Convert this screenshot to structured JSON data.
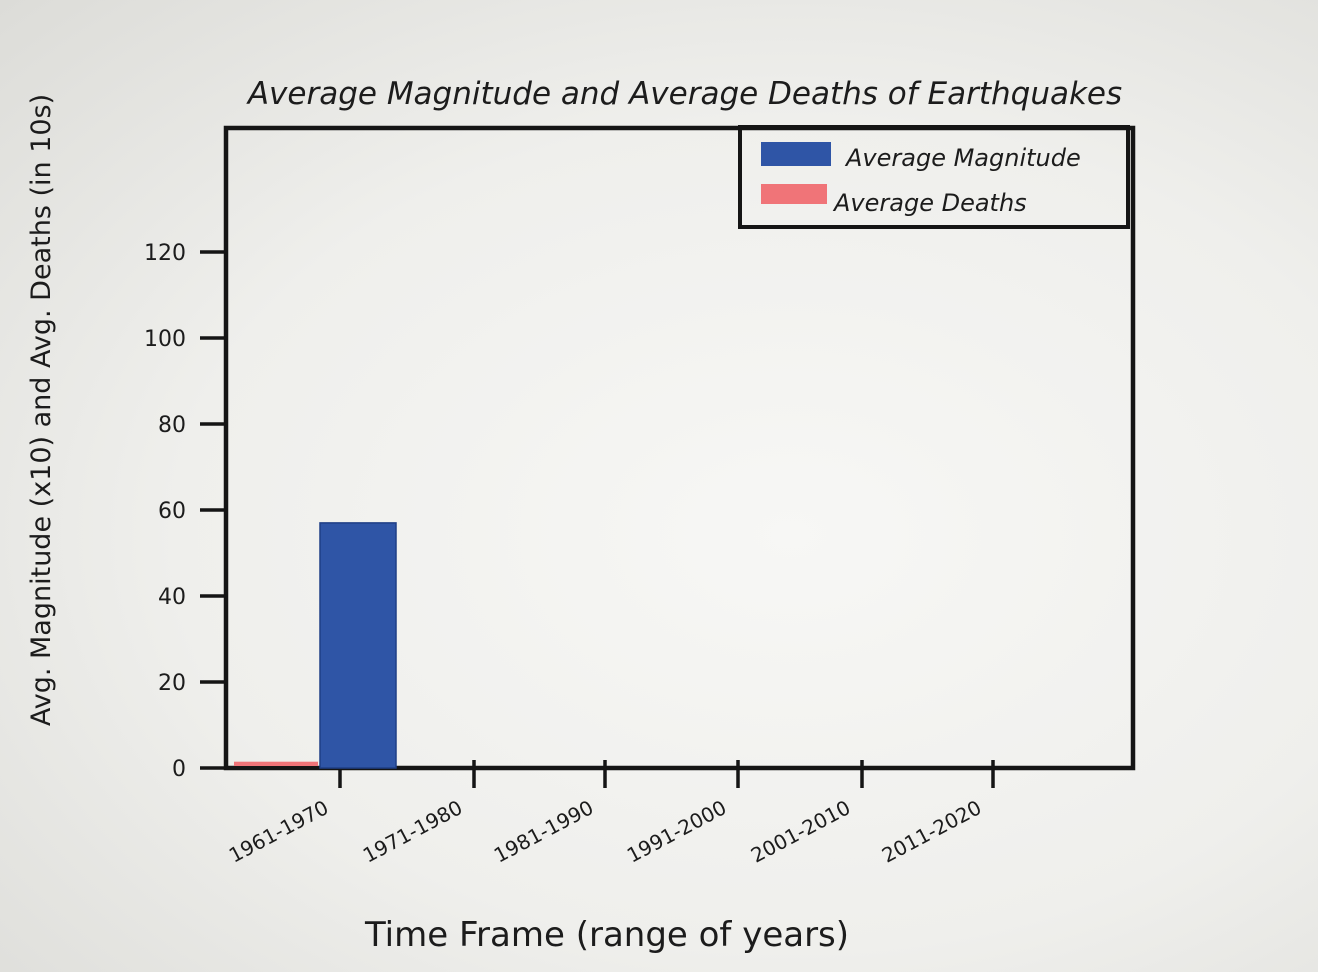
{
  "chart_data": {
    "type": "bar",
    "title": "Average Magnitude and Average Deaths of Earthquakes",
    "xlabel": "Time Frame (range of years)",
    "ylabel": "Avg. Magnitude (x10) and Avg. Deaths (in 10s)",
    "categories": [
      "1961-1970",
      "1971-1980",
      "1981-1990",
      "1991-2000",
      "2001-2010",
      "2011-2020"
    ],
    "series": [
      {
        "name": "Average Magnitude",
        "color": "#2f55a6",
        "values": [
          57,
          0,
          0,
          0,
          0,
          0
        ]
      },
      {
        "name": "Average Deaths",
        "color": "#f07478",
        "values": [
          1,
          0,
          0,
          0,
          0,
          0
        ]
      }
    ],
    "ylim": [
      0,
      135
    ],
    "yticks": [
      "0",
      "20",
      "40",
      "60",
      "80",
      "100",
      "120"
    ],
    "legend_position": "top-right",
    "grid": false
  }
}
